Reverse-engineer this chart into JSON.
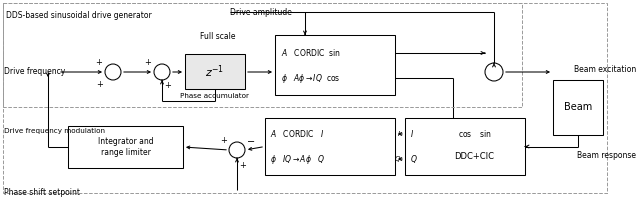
{
  "bg": "#ffffff",
  "lc": "#000000",
  "dc": "#999999",
  "figsize": [
    6.4,
    1.99
  ],
  "dpi": 100,
  "dds_label": "DDS-based sinusoidal drive generator",
  "drive_amp_label": "Drive amplitude",
  "full_scale_label": "Full scale",
  "drive_freq_label": "Drive frequency",
  "phase_acc_label": "Phase accumulator",
  "drive_freq_mod_label": "Drive frequency modulation",
  "phase_shift_label": "Phase shift setpoint",
  "beam_excitation_label": "Beam excitation",
  "beam_response_label": "Beam response",
  "beam_label": "Beam",
  "integrator_label": "Integrator and\nrange limiter",
  "zinv_label": "$z^{-1}$"
}
